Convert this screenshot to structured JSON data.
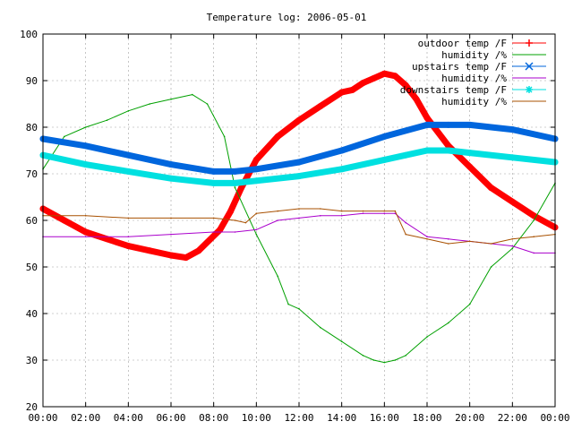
{
  "chart_data": {
    "type": "line",
    "title": "Temperature log: 2006-05-01",
    "xlabel": "",
    "ylabel": "",
    "ylim": [
      20,
      100
    ],
    "xlim": [
      0,
      24
    ],
    "x_unit": "hours",
    "grid": true,
    "legend_position": "top-right",
    "yticks": [
      "20",
      "30",
      "40",
      "50",
      "60",
      "70",
      "80",
      "90",
      "100"
    ],
    "xticks": [
      "00:00",
      "02:00",
      "04:00",
      "06:00",
      "08:00",
      "10:00",
      "12:00",
      "14:00",
      "16:00",
      "18:00",
      "20:00",
      "22:00",
      "00:00"
    ],
    "series": [
      {
        "name": "outdoor temp /F",
        "color": "#ff0000",
        "marker": "plus",
        "x": [
          0,
          1,
          2,
          3,
          4,
          5,
          6,
          6.7,
          7.3,
          8.3,
          8.8,
          9.3,
          10,
          11,
          12,
          13,
          14,
          14.5,
          15,
          15.5,
          16,
          16.5,
          17,
          17.5,
          18,
          19,
          20,
          21,
          22,
          23,
          24
        ],
        "values": [
          62.5,
          60,
          57.5,
          56,
          54.5,
          53.5,
          52.5,
          52,
          53.5,
          58,
          62,
          67,
          73,
          78,
          81.5,
          84.5,
          87.5,
          88,
          89.5,
          90.5,
          91.5,
          91,
          89,
          86,
          82,
          76,
          71.5,
          67,
          64,
          61,
          58.5
        ]
      },
      {
        "name": "humidity /%",
        "color": "#00a000",
        "marker": "none",
        "x": [
          0,
          1,
          2,
          3,
          4,
          5,
          6,
          7,
          7.7,
          8.5,
          9,
          10,
          11,
          11.5,
          12,
          13,
          14,
          15,
          15.5,
          16,
          16.5,
          17,
          18,
          19,
          20,
          21,
          22,
          23,
          24
        ],
        "values": [
          71,
          78,
          80,
          81.5,
          83.5,
          85,
          86,
          87,
          85,
          78,
          67,
          57,
          48,
          42,
          41,
          37,
          34,
          31,
          30,
          29.5,
          30,
          31,
          35,
          38,
          42,
          50,
          54,
          60,
          68
        ]
      },
      {
        "name": "upstairs temp /F",
        "color": "#0066dd",
        "marker": "x",
        "x": [
          0,
          2,
          4,
          6,
          8,
          9,
          10,
          12,
          14,
          16,
          18,
          19,
          20,
          22,
          24
        ],
        "values": [
          77.5,
          76,
          74,
          72,
          70.5,
          70.5,
          71,
          72.5,
          75,
          78,
          80.5,
          80.5,
          80.5,
          79.5,
          77.5
        ]
      },
      {
        "name": "humidity /%",
        "color": "#aa00cc",
        "marker": "none",
        "x": [
          0,
          2,
          4,
          6,
          8,
          9,
          10,
          11,
          12,
          13,
          14,
          15,
          16,
          16.5,
          17,
          18,
          19,
          20,
          22,
          23,
          24
        ],
        "values": [
          56.5,
          56.5,
          56.5,
          57,
          57.5,
          57.5,
          58,
          60,
          60.5,
          61,
          61,
          61.5,
          61.5,
          61.5,
          59.5,
          56.5,
          56,
          55.5,
          54.5,
          53,
          53
        ]
      },
      {
        "name": "downstairs temp /F",
        "color": "#00e0e0",
        "marker": "star",
        "x": [
          0,
          2,
          4,
          6,
          8,
          9,
          10,
          12,
          14,
          16,
          17,
          18,
          19,
          20,
          22,
          24
        ],
        "values": [
          74,
          72,
          70.5,
          69,
          68,
          68,
          68.5,
          69.5,
          71,
          73,
          74,
          75,
          75,
          74.5,
          73.5,
          72.5
        ]
      },
      {
        "name": "humidity /%",
        "color": "#a85000",
        "marker": "none",
        "x": [
          0,
          2,
          4,
          6,
          8,
          9,
          9.5,
          10,
          11,
          12,
          13,
          14,
          15,
          16,
          16.5,
          17,
          18,
          19,
          20,
          21,
          22,
          23,
          24
        ],
        "values": [
          61,
          61,
          60.5,
          60.5,
          60.5,
          60,
          59.5,
          61.5,
          62,
          62.5,
          62.5,
          62,
          62,
          62,
          62,
          57,
          56,
          55,
          55.5,
          55,
          56,
          56.5,
          57
        ]
      }
    ]
  }
}
